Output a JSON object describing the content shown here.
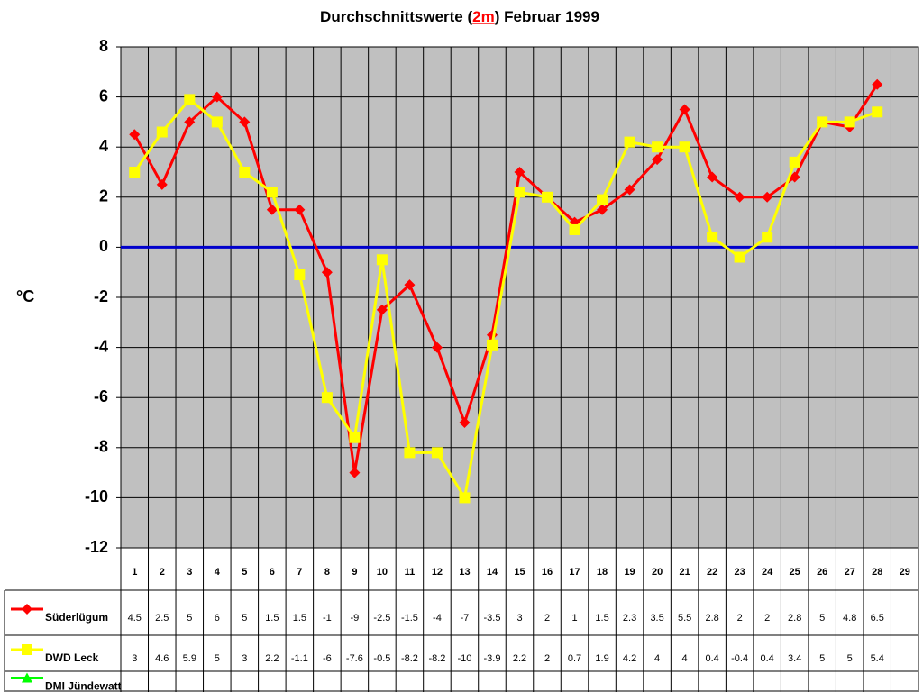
{
  "chart_data": {
    "type": "line",
    "title_prefix": "Durchschnittswerte (",
    "title_highlight": "2m",
    "title_suffix": ") Februar 1999",
    "y_label": "°C",
    "categories": [
      "1",
      "2",
      "3",
      "4",
      "5",
      "6",
      "7",
      "8",
      "9",
      "10",
      "11",
      "12",
      "13",
      "14",
      "15",
      "16",
      "17",
      "18",
      "19",
      "20",
      "21",
      "22",
      "23",
      "24",
      "25",
      "26",
      "27",
      "28",
      "29"
    ],
    "series": [
      {
        "name": "Süderlügum",
        "color": "#ff0000",
        "marker": "diamond",
        "values": [
          4.5,
          2.5,
          5,
          6,
          5,
          1.5,
          1.5,
          -1,
          -9,
          -2.5,
          -1.5,
          -4,
          -7,
          -3.5,
          3,
          2,
          1,
          1.5,
          2.3,
          3.5,
          5.5,
          2.8,
          2,
          2,
          2.8,
          5,
          4.8,
          6.5,
          null
        ]
      },
      {
        "name": "DWD Leck",
        "color": "#ffff00",
        "marker": "square",
        "values": [
          3,
          4.6,
          5.9,
          5,
          3,
          2.2,
          -1.1,
          -6,
          -7.6,
          -0.5,
          -8.2,
          -8.2,
          -10,
          -3.9,
          2.2,
          2,
          0.7,
          1.9,
          4.2,
          4,
          4,
          0.4,
          -0.4,
          0.4,
          3.4,
          5,
          5,
          5.4,
          null
        ]
      },
      {
        "name": "DMI Jündewatt",
        "color": "#00ff00",
        "marker": "triangle",
        "values": [
          null,
          null,
          null,
          null,
          null,
          null,
          null,
          null,
          null,
          null,
          null,
          null,
          null,
          null,
          null,
          null,
          null,
          null,
          null,
          null,
          null,
          null,
          null,
          null,
          null,
          null,
          null,
          null,
          null
        ]
      }
    ],
    "ylim": [
      -12,
      8
    ],
    "yticks": [
      -12,
      -10,
      -8,
      -6,
      -4,
      -2,
      0,
      2,
      4,
      6,
      8
    ],
    "grid": true,
    "plot_background": "#c0c0c0",
    "zero_line_color": "#0000cc"
  }
}
